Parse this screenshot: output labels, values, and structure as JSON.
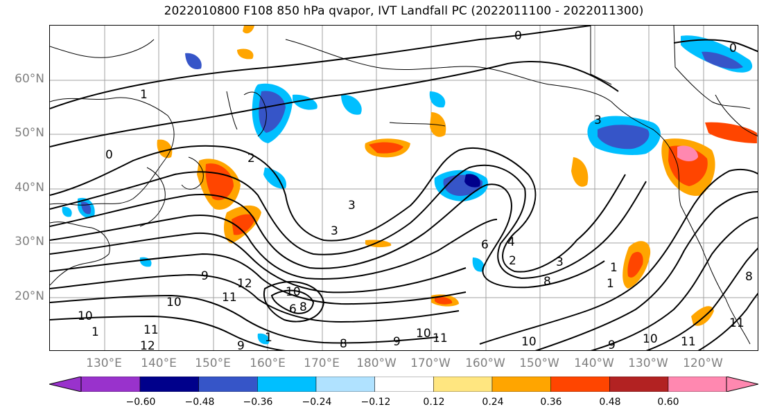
{
  "title": "2022010800 F108 850 hPa qvapor, IVT Landfall PC (2022011100 - 2022011300)",
  "lat_labels": [
    "60°N",
    "50°N",
    "40°N",
    "30°N",
    "20°N"
  ],
  "lon_labels": [
    "130°E",
    "140°E",
    "150°E",
    "160°E",
    "170°E",
    "180°W",
    "170°W",
    "160°W",
    "150°W",
    "140°W",
    "130°W",
    "120°W"
  ],
  "colorbar": {
    "ticks": [
      "−0.60",
      "−0.48",
      "−0.36",
      "−0.24",
      "−0.12",
      "0.12",
      "0.24",
      "0.36",
      "0.48",
      "0.60"
    ],
    "colors": [
      "#9932cc",
      "#00008b",
      "#3655c8",
      "#00bfff",
      "#b0e2ff",
      "#ffffff",
      "#ffe680",
      "#ffa500",
      "#ff4500",
      "#b22222",
      "#ff88b0"
    ]
  },
  "contour_labels": [
    "0",
    "0",
    "1",
    "2",
    "3",
    "3",
    "3",
    "6",
    "4",
    "2",
    "3",
    "8",
    "9",
    "12",
    "11",
    "10",
    "10",
    "8",
    "6",
    "9",
    "10",
    "11",
    "10",
    "11",
    "9",
    "10",
    "11",
    "8",
    "1",
    "1",
    "11",
    "12",
    "9",
    "0",
    "8",
    "10",
    "1",
    "1"
  ],
  "accent": {
    "land_outline": "#000000",
    "grid": "#a0a0a0",
    "contour": "#000000"
  }
}
